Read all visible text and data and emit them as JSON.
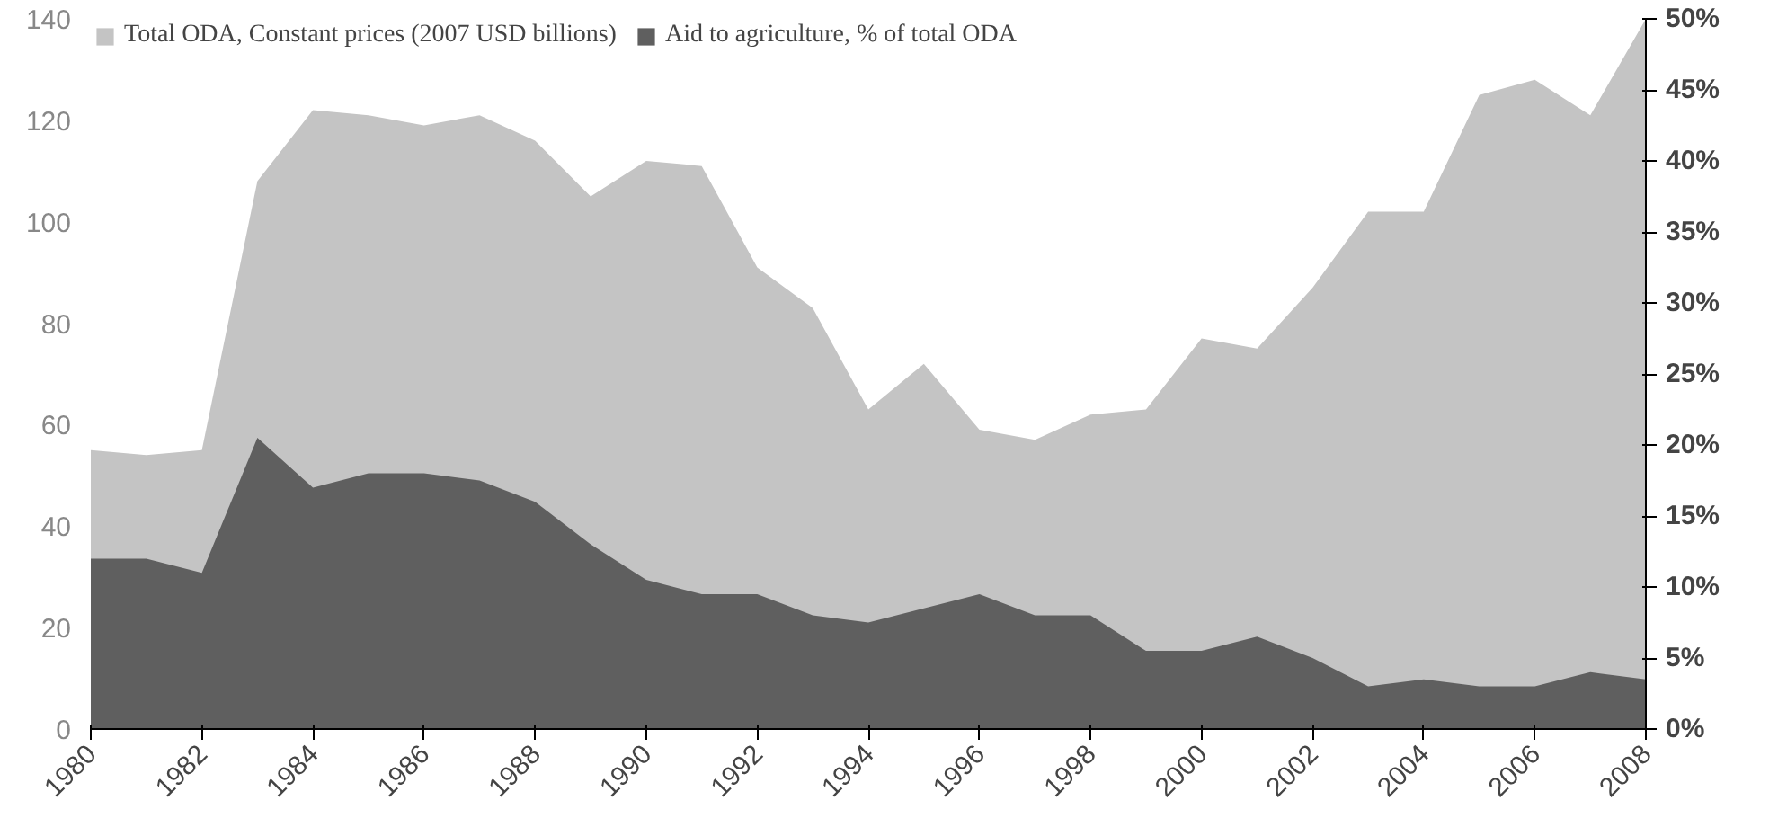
{
  "chart_data": {
    "type": "area",
    "x": [
      1980,
      1981,
      1982,
      1983,
      1984,
      1985,
      1986,
      1987,
      1988,
      1989,
      1990,
      1991,
      1992,
      1993,
      1994,
      1995,
      1996,
      1997,
      1998,
      1999,
      2000,
      2001,
      2002,
      2003,
      2004,
      2005,
      2006,
      2007,
      2008
    ],
    "series": [
      {
        "name": "Total ODA, Constant prices (2007 USD billions)",
        "color": "#c4c4c4",
        "values": [
          55,
          54,
          55,
          108,
          122,
          121,
          119,
          121,
          116,
          105,
          112,
          111,
          91,
          83,
          63,
          72,
          59,
          57,
          62,
          63,
          77,
          75,
          87,
          102,
          102,
          125,
          128,
          121,
          140
        ]
      },
      {
        "name": "Aid to agriculture, % of total ODA",
        "color": "#5f5f5f",
        "axis": "y2",
        "values": [
          12,
          12,
          11,
          20.5,
          17,
          18,
          18,
          17.5,
          16,
          13,
          10.5,
          9.5,
          9.5,
          8,
          7.5,
          8.5,
          9.5,
          8,
          8,
          5.5,
          5.5,
          6.5,
          5,
          3,
          3.5,
          3,
          3,
          4,
          3.5
        ]
      }
    ],
    "xlim": [
      1980,
      2008
    ],
    "xticks": [
      1980,
      1982,
      1984,
      1986,
      1988,
      1990,
      1992,
      1994,
      1996,
      1998,
      2000,
      2002,
      2004,
      2006,
      2008
    ],
    "ylim": [
      0,
      140
    ],
    "yticks": [
      0,
      20,
      40,
      60,
      80,
      100,
      120,
      140
    ],
    "y2lim": [
      0,
      50
    ],
    "y2ticks": [
      {
        "value": 0,
        "label": "0%"
      },
      {
        "value": 5,
        "label": "5%"
      },
      {
        "value": 10,
        "label": "10%"
      },
      {
        "value": 15,
        "label": "15%"
      },
      {
        "value": 20,
        "label": "20%"
      },
      {
        "value": 25,
        "label": "25%"
      },
      {
        "value": 30,
        "label": "30%"
      },
      {
        "value": 35,
        "label": "35%"
      },
      {
        "value": 40,
        "label": "40%"
      },
      {
        "value": 45,
        "label": "45%"
      },
      {
        "value": 50,
        "label": "50%"
      }
    ],
    "grid": false,
    "legend": "top"
  }
}
